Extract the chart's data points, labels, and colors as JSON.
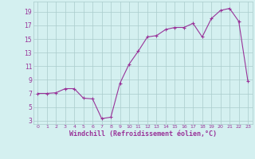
{
  "xlabel": "Windchill (Refroidissement éolien,°C)",
  "x": [
    0,
    1,
    2,
    3,
    4,
    5,
    6,
    7,
    8,
    9,
    10,
    11,
    12,
    13,
    14,
    15,
    16,
    17,
    18,
    19,
    20,
    21,
    22,
    23
  ],
  "y": [
    7.0,
    7.0,
    7.1,
    7.7,
    7.7,
    6.3,
    6.2,
    3.3,
    3.5,
    8.5,
    11.3,
    13.2,
    15.3,
    15.5,
    16.4,
    16.7,
    16.7,
    17.3,
    15.3,
    18.0,
    19.2,
    19.5,
    17.6,
    8.8
  ],
  "line_color": "#993399",
  "marker_color": "#993399",
  "bg_color": "#d4f0f0",
  "grid_color": "#aacccc",
  "axis_label_color": "#993399",
  "tick_label_color": "#993399",
  "ylim_min": 2.5,
  "ylim_max": 20.5,
  "xlim_min": -0.5,
  "xlim_max": 23.5,
  "yticks": [
    3,
    5,
    7,
    9,
    11,
    13,
    15,
    17,
    19
  ],
  "xticks": [
    0,
    1,
    2,
    3,
    4,
    5,
    6,
    7,
    8,
    9,
    10,
    11,
    12,
    13,
    14,
    15,
    16,
    17,
    18,
    19,
    20,
    21,
    22,
    23
  ]
}
